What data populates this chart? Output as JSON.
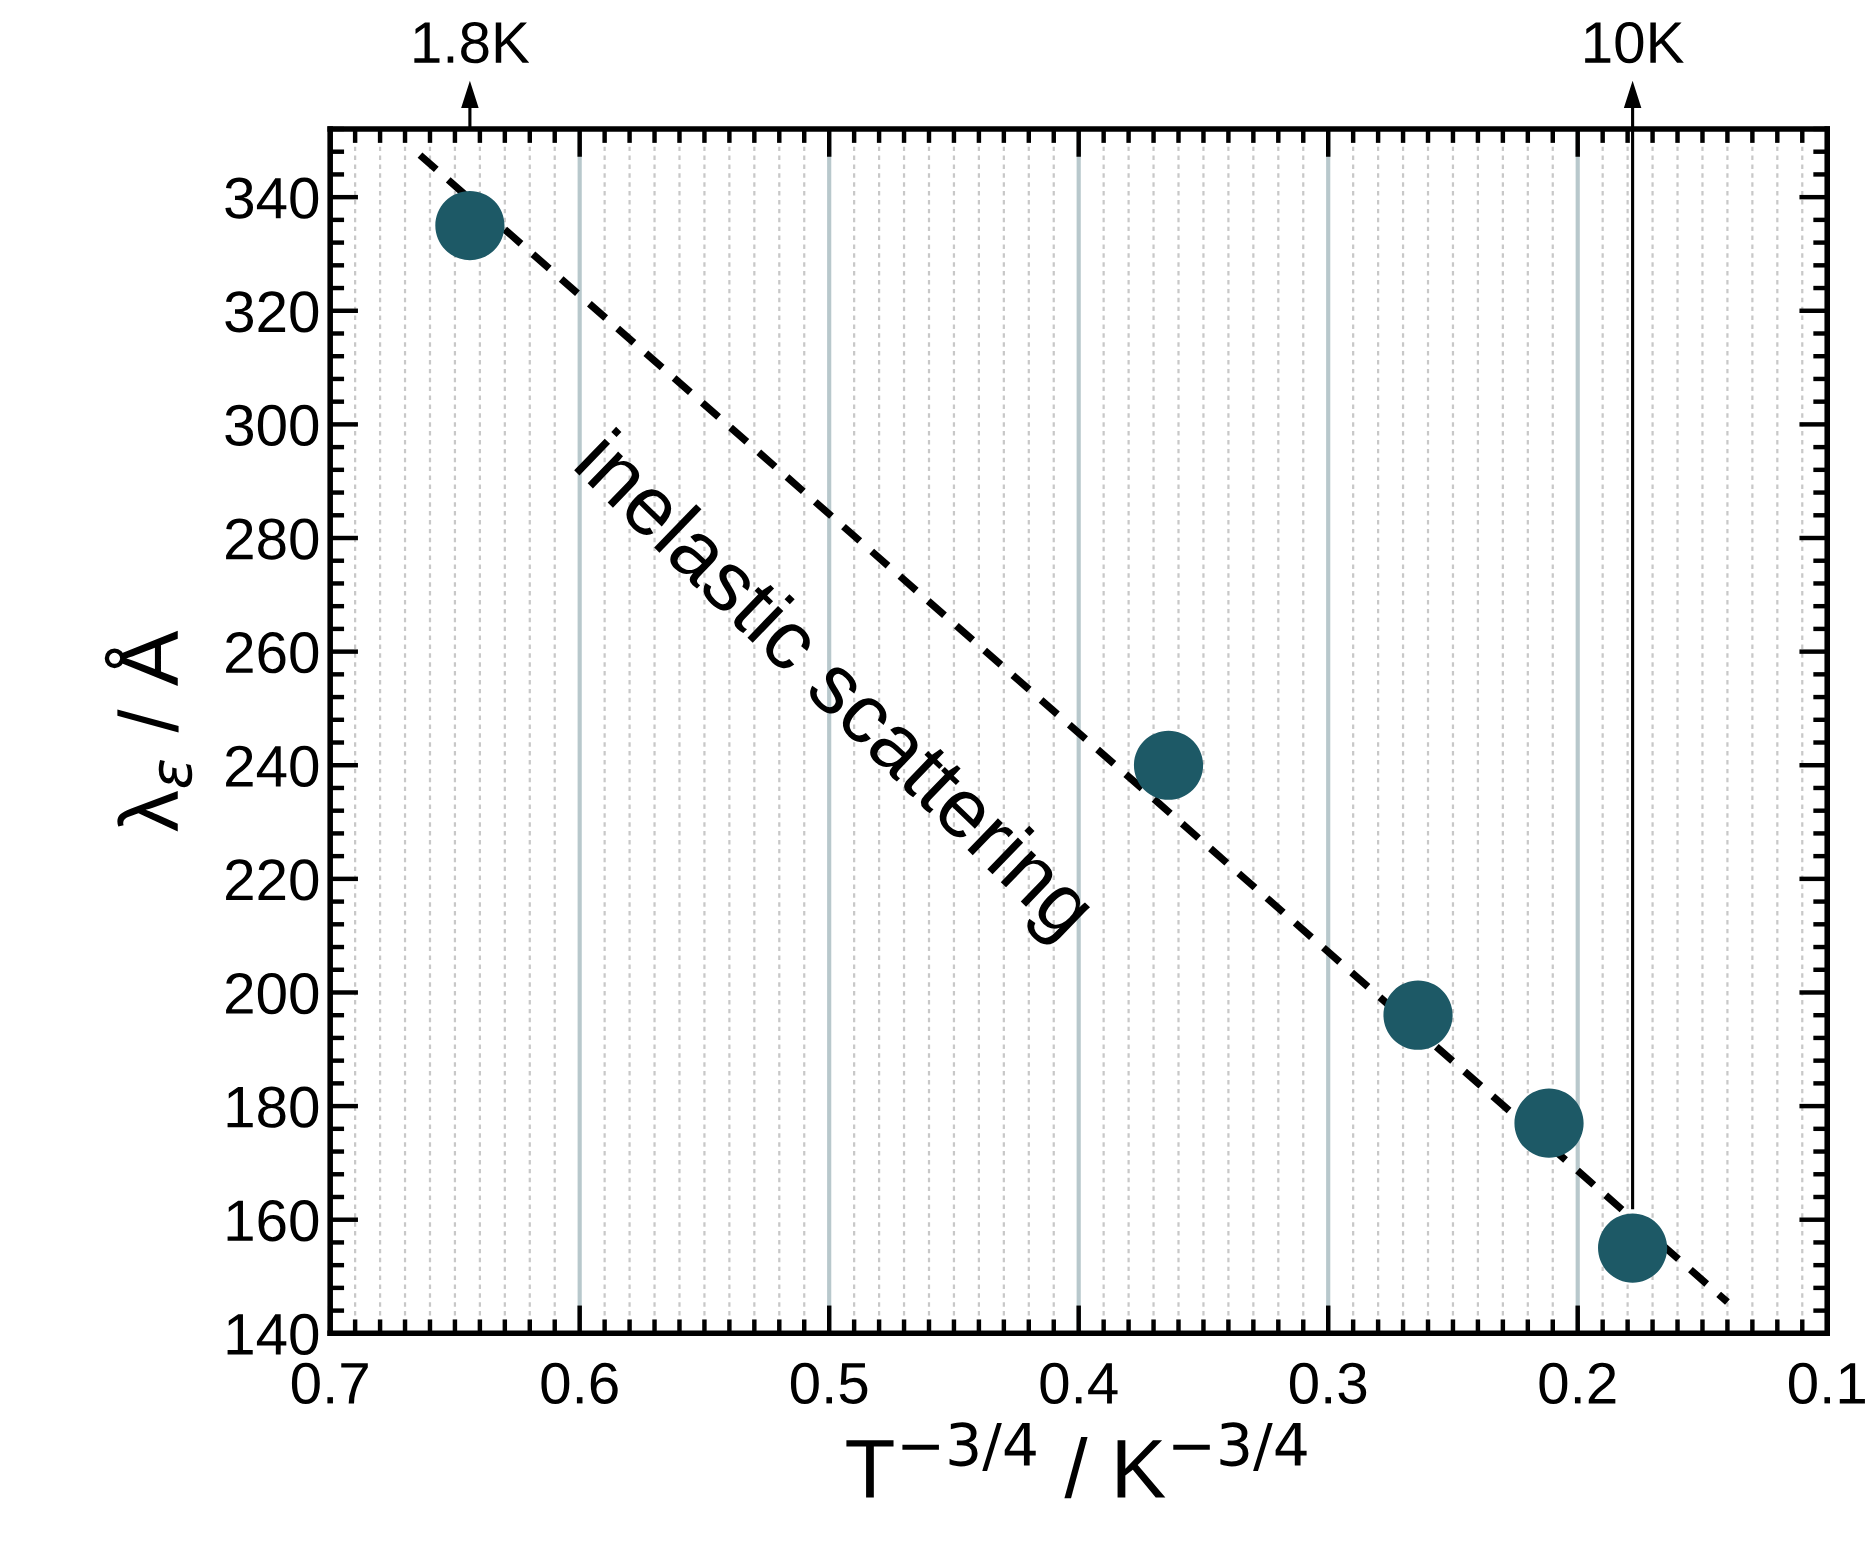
{
  "chart_data": {
    "type": "scatter",
    "xlabel": "T$^{−3/4}$ / K$^{−3/4}$",
    "ylabel": "λ$_{ε}$ / Å",
    "x": [
      0.644,
      0.364,
      0.264,
      0.2115,
      0.178
    ],
    "series": [
      {
        "type": "scatter",
        "color": "#1d5966",
        "marker": "circle",
        "values": [
          335,
          240,
          196,
          177,
          155
        ]
      },
      {
        "type": "line",
        "color": "#000000",
        "line_style": "dashed",
        "marker": "none",
        "x": [
          0.664,
          0.14
        ],
        "values": [
          347.4,
          145.5
        ]
      }
    ],
    "xlim": [
      0.7,
      0.1
    ],
    "xticks": [
      0.7,
      0.6,
      0.5,
      0.4,
      0.3,
      0.2,
      0.1
    ],
    "ylim": [
      140,
      352
    ],
    "yticks": [
      140,
      160,
      180,
      200,
      220,
      240,
      260,
      280,
      300,
      320,
      340
    ],
    "grid": "x",
    "annotations": [
      "inelastic scattering",
      "1.8K",
      "10K"
    ]
  }
}
